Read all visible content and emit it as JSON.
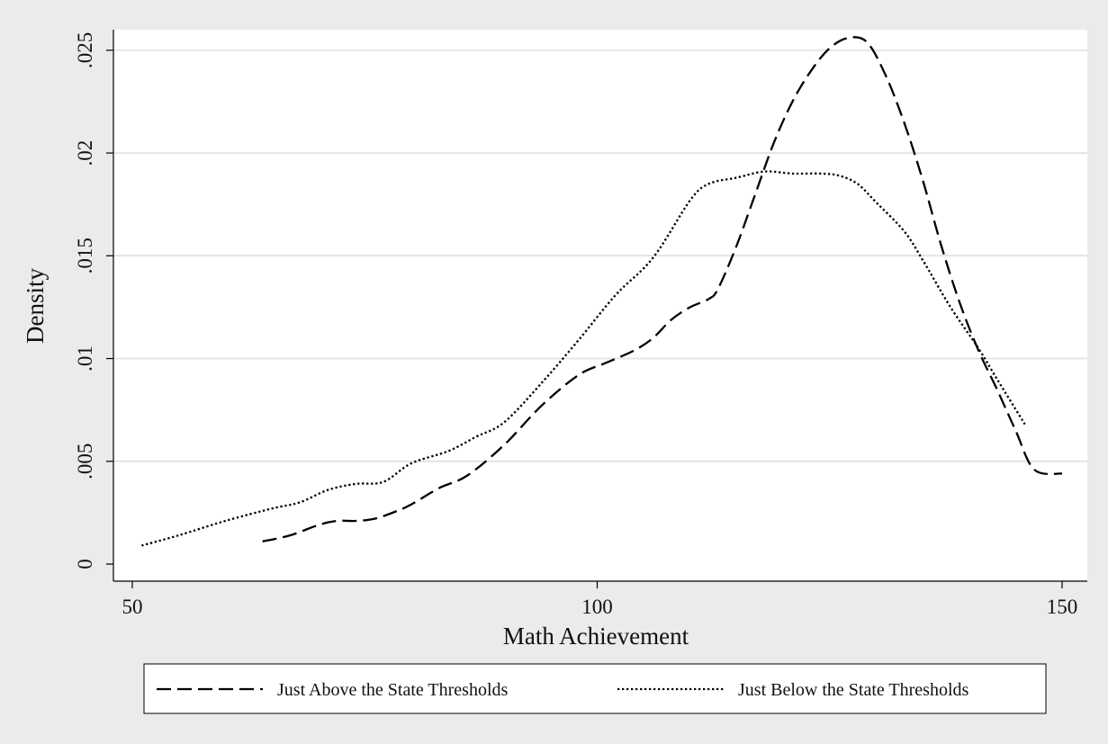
{
  "chart_data": {
    "type": "line",
    "xlabel": "Math Achievement",
    "ylabel": "Density",
    "xlim": [
      50,
      150
    ],
    "ylim": [
      0,
      0.026
    ],
    "x_ticks": [
      50,
      100,
      150
    ],
    "x_tick_labels": [
      "50",
      "100",
      "150"
    ],
    "y_ticks": [
      0,
      0.005,
      0.01,
      0.015,
      0.02,
      0.025
    ],
    "y_tick_labels": [
      "0",
      ".005",
      ".01",
      ".015",
      ".02",
      ".025"
    ],
    "grid": true,
    "legend_position": "bottom",
    "series": [
      {
        "name": "Just Above the State Thresholds",
        "style": "dashed",
        "x": [
          64,
          67,
          70,
          72,
          74,
          76,
          78,
          80,
          83,
          86,
          90,
          94,
          98,
          101,
          104,
          106,
          108,
          110,
          112,
          113,
          115,
          117,
          119,
          121,
          123,
          125,
          127,
          129,
          131,
          133,
          135,
          137,
          139,
          141,
          143,
          145,
          147,
          150
        ],
        "y": [
          0.0011,
          0.0014,
          0.0019,
          0.0021,
          0.0021,
          0.0022,
          0.0025,
          0.0029,
          0.0037,
          0.0043,
          0.0058,
          0.0077,
          0.0092,
          0.0098,
          0.0104,
          0.011,
          0.0119,
          0.0125,
          0.0129,
          0.0134,
          0.0155,
          0.018,
          0.0205,
          0.0225,
          0.024,
          0.0251,
          0.0256,
          0.0254,
          0.0238,
          0.0215,
          0.0187,
          0.0155,
          0.0127,
          0.0104,
          0.0085,
          0.0065,
          0.0046,
          0.0044
        ]
      },
      {
        "name": "Just Below the State Thresholds",
        "style": "dotted",
        "x": [
          51,
          55,
          60,
          65,
          68,
          71,
          74,
          77,
          80,
          84,
          87,
          90,
          94,
          98,
          102,
          106,
          110,
          112,
          115,
          118,
          121,
          124,
          126,
          128,
          130,
          133,
          135,
          138,
          141,
          143,
          146
        ],
        "y": [
          0.0009,
          0.0014,
          0.0021,
          0.0027,
          0.003,
          0.0036,
          0.0039,
          0.004,
          0.0049,
          0.0055,
          0.0062,
          0.0069,
          0.0088,
          0.0109,
          0.0131,
          0.0149,
          0.0177,
          0.0185,
          0.0188,
          0.0191,
          0.019,
          0.019,
          0.0189,
          0.0185,
          0.0176,
          0.0162,
          0.0148,
          0.0125,
          0.0105,
          0.009,
          0.0068
        ]
      }
    ]
  }
}
